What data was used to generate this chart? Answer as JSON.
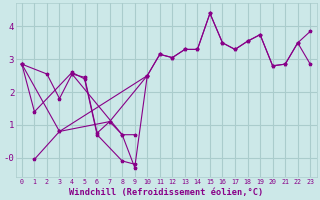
{
  "background_color": "#cce8e8",
  "grid_color": "#aacccc",
  "line_color": "#880088",
  "xlabel": "Windchill (Refroidissement éolien,°C)",
  "xlim_min": -0.5,
  "xlim_max": 23.5,
  "ylim_min": -0.6,
  "ylim_max": 4.7,
  "yticks": [
    0,
    1,
    2,
    3,
    4
  ],
  "ytick_labels": [
    "-0",
    "1",
    "2",
    "3",
    "4"
  ],
  "xticks": [
    0,
    1,
    2,
    3,
    4,
    5,
    6,
    7,
    8,
    9,
    10,
    11,
    12,
    13,
    14,
    15,
    16,
    17,
    18,
    19,
    20,
    21,
    22,
    23
  ],
  "series": [
    {
      "x": [
        0,
        1,
        4,
        5,
        6,
        8,
        9
      ],
      "y": [
        2.85,
        1.4,
        2.6,
        2.4,
        0.7,
        -0.1,
        -0.2
      ]
    },
    {
      "x": [
        0,
        2,
        3,
        4,
        5,
        6,
        7,
        8,
        9
      ],
      "y": [
        2.85,
        2.55,
        1.8,
        2.55,
        2.45,
        0.75,
        1.1,
        0.7,
        0.7
      ]
    },
    {
      "x": [
        1,
        3,
        10
      ],
      "y": [
        -0.05,
        0.8,
        2.5
      ]
    },
    {
      "x": [
        0,
        3,
        7,
        10,
        11,
        12,
        13,
        14,
        15,
        16,
        17,
        18,
        19,
        20,
        21,
        22,
        23
      ],
      "y": [
        2.85,
        0.8,
        1.1,
        2.5,
        3.15,
        3.05,
        3.3,
        3.3,
        4.4,
        3.5,
        3.3,
        3.55,
        3.75,
        2.8,
        2.85,
        3.5,
        2.85
      ]
    },
    {
      "x": [
        4,
        8,
        9,
        10,
        11,
        12,
        13,
        14,
        15,
        16,
        17,
        18,
        19,
        20,
        21,
        22,
        23
      ],
      "y": [
        2.55,
        0.7,
        -0.3,
        2.5,
        3.15,
        3.05,
        3.3,
        3.3,
        4.4,
        3.5,
        3.3,
        3.55,
        3.75,
        2.8,
        2.85,
        3.5,
        3.85
      ]
    }
  ]
}
